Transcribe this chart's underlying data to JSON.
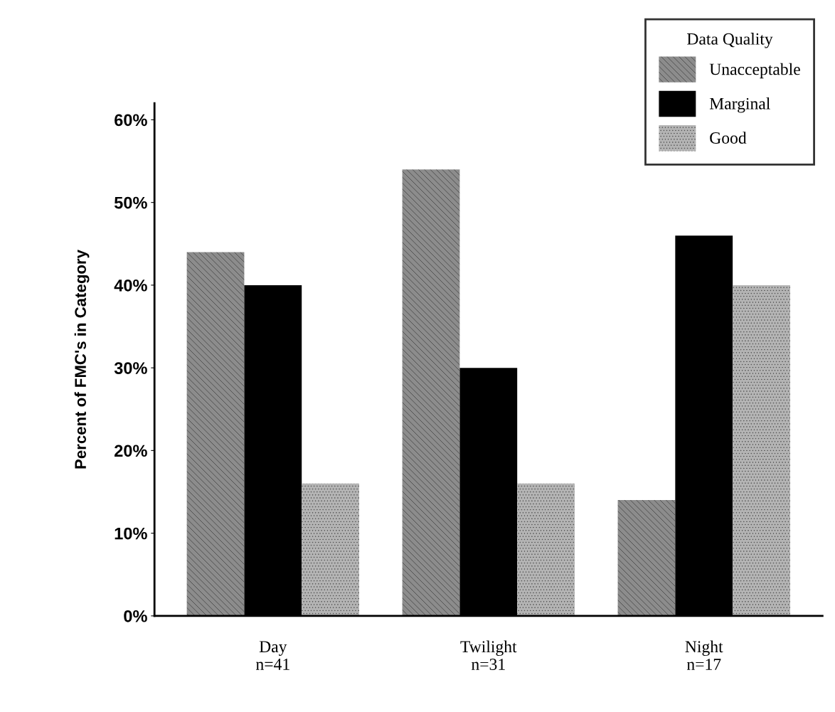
{
  "chart_data": {
    "type": "bar",
    "ylabel": "Percent of FMC's in Category",
    "legend_title": "Data Quality",
    "legend": "top right",
    "categories": [
      "Day\nn=41",
      "Twilight\nn=31",
      "Night\nn=17"
    ],
    "series": [
      {
        "name": "Unacceptable",
        "color": "#8c8c8c",
        "values": [
          44,
          54,
          14
        ]
      },
      {
        "name": "Marginal",
        "color": "#000000",
        "values": [
          40,
          30,
          46
        ]
      },
      {
        "name": "Good",
        "color": "#b4b4b4",
        "values": [
          16,
          16,
          40
        ]
      }
    ],
    "ylim": [
      0,
      62
    ],
    "yticks": [
      {
        "value": 0,
        "label": "0%"
      },
      {
        "value": 10,
        "label": "10%"
      },
      {
        "value": 20,
        "label": "20%"
      },
      {
        "value": 30,
        "label": "30%"
      },
      {
        "value": 40,
        "label": "40%"
      },
      {
        "value": 50,
        "label": "50%"
      },
      {
        "value": 60,
        "label": "60%"
      }
    ],
    "grid": false
  }
}
